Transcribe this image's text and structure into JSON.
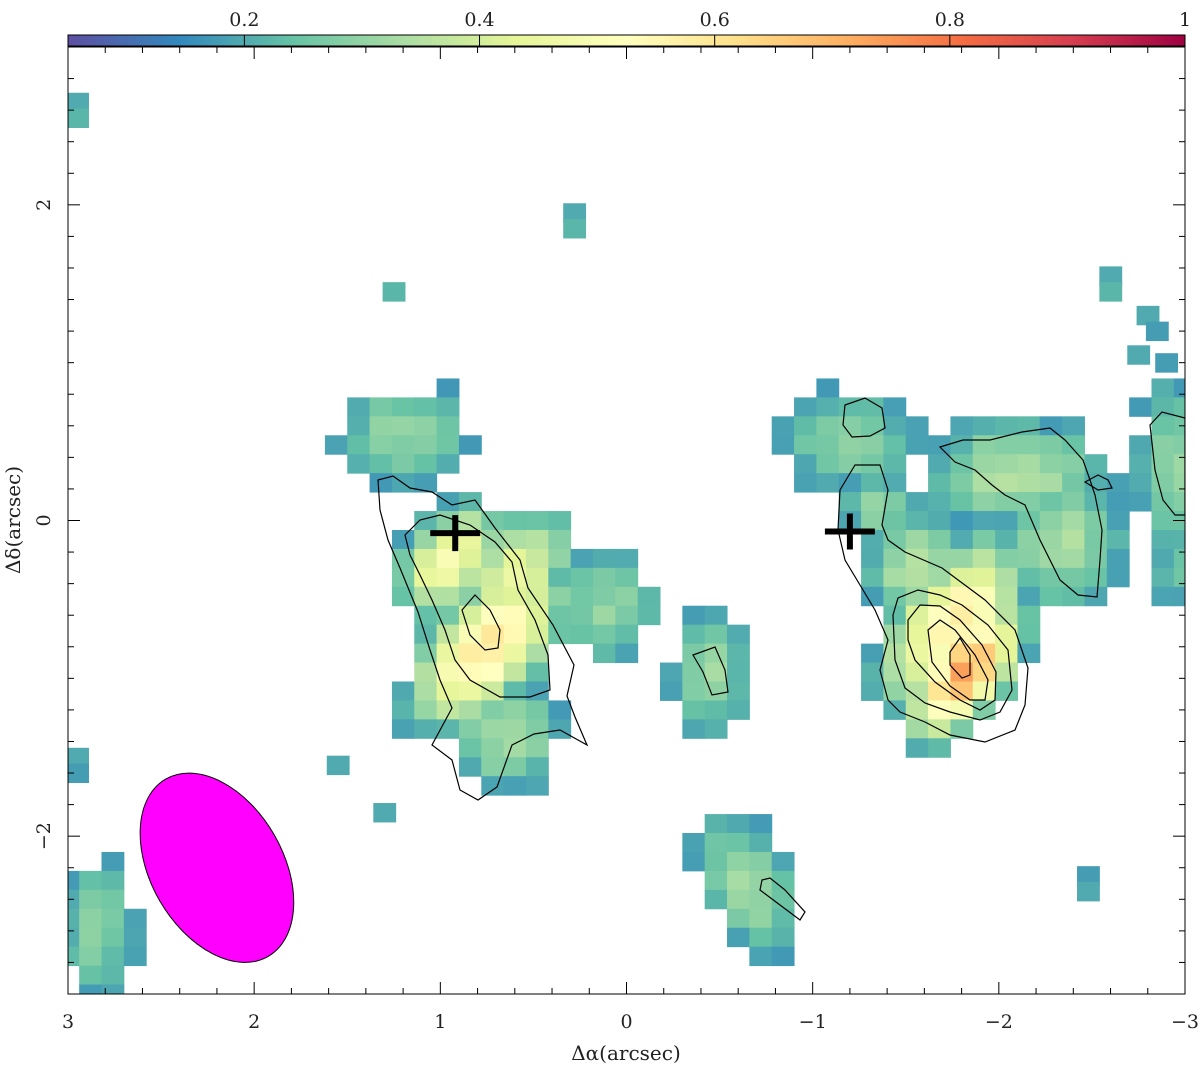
{
  "chart_data": {
    "type": "heatmap",
    "xlabel": "Δα(arcsec)",
    "ylabel": "Δδ(arcsec)",
    "xlim": [
      3,
      -3
    ],
    "ylim": [
      -3.0,
      3.0
    ],
    "x_ticks": [
      "3",
      "2",
      "1",
      "0",
      "−1",
      "−2",
      "−3"
    ],
    "y_ticks": [
      "2",
      "0",
      "−2"
    ],
    "colorbar": {
      "range": [
        0.05,
        1.0
      ],
      "ticks": [
        "0.2",
        "0.4",
        "0.6",
        "0.8",
        "1"
      ],
      "colormap": "spectral"
    },
    "pixel_size_arcsec": 0.12,
    "cells": [
      [
        2.95,
        2.65,
        0.2
      ],
      [
        2.95,
        2.55,
        0.22
      ],
      [
        1.25,
        1.45,
        0.22
      ],
      [
        0.28,
        1.95,
        0.2
      ],
      [
        0.28,
        1.85,
        0.22
      ],
      [
        -2.6,
        1.55,
        0.2
      ],
      [
        -2.6,
        1.45,
        0.22
      ],
      [
        -2.8,
        1.3,
        0.2
      ],
      [
        -2.85,
        1.2,
        0.18
      ],
      [
        -2.75,
        1.05,
        0.2
      ],
      [
        -2.9,
        1.0,
        0.18
      ],
      [
        -2.48,
        -2.25,
        0.18
      ],
      [
        -2.48,
        -2.35,
        0.2
      ],
      [
        1.55,
        -1.55,
        0.2
      ],
      [
        1.3,
        -1.85,
        0.2
      ],
      [
        2.95,
        -1.5,
        0.2
      ],
      [
        2.95,
        -1.6,
        0.18
      ]
    ],
    "blobs": [
      {
        "x": 1.2,
        "y": 0.55,
        "sx": 0.35,
        "sy": 0.3,
        "peak": 0.3
      },
      {
        "x": 0.6,
        "y": -0.35,
        "sx": 0.2,
        "sy": 0.38,
        "angle": 30,
        "peak": 0.45
      },
      {
        "x": 0.75,
        "y": -0.8,
        "sx": 0.22,
        "sy": 0.45,
        "angle": 35,
        "peak": 0.6
      },
      {
        "x": 0.95,
        "y": -0.25,
        "sx": 0.2,
        "sy": 0.3,
        "angle": 30,
        "peak": 0.5
      },
      {
        "x": 0.65,
        "y": -1.35,
        "sx": 0.28,
        "sy": 0.35,
        "peak": 0.33
      },
      {
        "x": 0.1,
        "y": -0.55,
        "sx": 0.25,
        "sy": 0.35,
        "peak": 0.3
      },
      {
        "x": -0.45,
        "y": -0.95,
        "sx": 0.2,
        "sy": 0.38,
        "peak": 0.32
      },
      {
        "x": -0.65,
        "y": -2.3,
        "sx": 0.22,
        "sy": 0.42,
        "angle": -20,
        "peak": 0.33
      },
      {
        "x": -1.2,
        "y": 0.5,
        "sx": 0.35,
        "sy": 0.3,
        "peak": 0.3
      },
      {
        "x": -1.35,
        "y": 0.1,
        "sx": 0.2,
        "sy": 0.2,
        "peak": 0.32
      },
      {
        "x": -1.75,
        "y": -0.65,
        "sx": 0.22,
        "sy": 0.45,
        "angle": 30,
        "peak": 0.58
      },
      {
        "x": -1.82,
        "y": -0.95,
        "sx": 0.17,
        "sy": 0.35,
        "angle": 30,
        "peak": 0.72
      },
      {
        "x": -1.55,
        "y": -0.3,
        "sx": 0.25,
        "sy": 0.3,
        "peak": 0.35
      },
      {
        "x": -2.1,
        "y": 0.3,
        "sx": 0.45,
        "sy": 0.3,
        "peak": 0.35
      },
      {
        "x": -2.35,
        "y": -0.15,
        "sx": 0.3,
        "sy": 0.4,
        "peak": 0.33
      },
      {
        "x": -2.95,
        "y": 0.35,
        "sx": 0.2,
        "sy": 0.5,
        "peak": 0.32
      },
      {
        "x": -2.95,
        "y": -0.3,
        "sx": 0.15,
        "sy": 0.3,
        "peak": 0.25
      },
      {
        "x": 2.85,
        "y": -2.6,
        "sx": 0.22,
        "sy": 0.45,
        "peak": 0.28
      }
    ],
    "sources": [
      {
        "x": 0.92,
        "y": -0.08
      },
      {
        "x": -1.2,
        "y": -0.07
      }
    ],
    "beam": {
      "x": 2.2,
      "y": -2.2,
      "major": 1.1,
      "minor": 0.71,
      "pa": -30,
      "color": "#ff00ff"
    }
  }
}
